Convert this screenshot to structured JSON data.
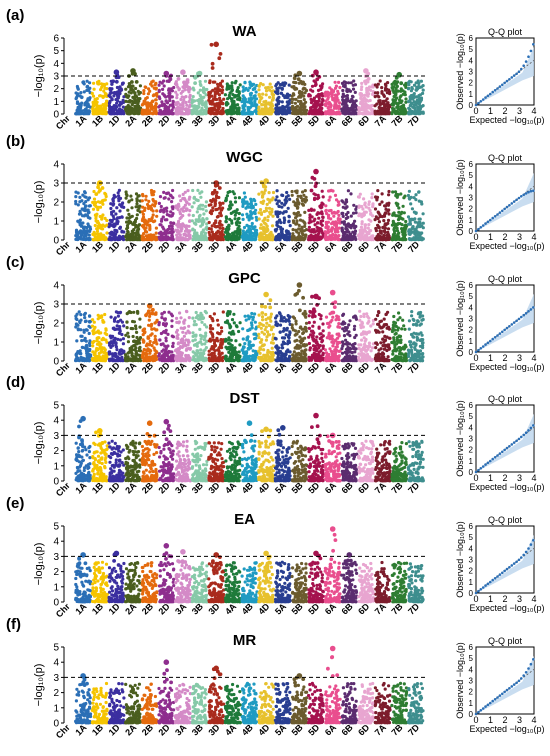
{
  "figure": {
    "chromosomes": [
      "Chr",
      "1A",
      "1B",
      "1D",
      "2A",
      "2B",
      "2D",
      "3A",
      "3B",
      "3D",
      "4A",
      "4B",
      "4D",
      "5A",
      "5B",
      "5D",
      "6A",
      "6B",
      "6D",
      "7A",
      "7B",
      "7D"
    ],
    "chromosome_colors": [
      "#2B6FB6",
      "#F5C400",
      "#3B2FA0",
      "#4A5E1E",
      "#E46A0D",
      "#8E2E8E",
      "#D48AC7",
      "#86C9A8",
      "#A92B1D",
      "#1E7A3A",
      "#1F9BC2",
      "#E7C12D",
      "#283E91",
      "#6B5B2E",
      "#A5124E",
      "#E94E8E",
      "#5B2C6F",
      "#E8A5D0",
      "#7C1C2C",
      "#2E7D32",
      "#3E8E8E"
    ],
    "threshold": 3,
    "ylabel": "−log₁₀(p)",
    "qq": {
      "title": "Q-Q plot",
      "xlabel": "Expected −log₁₀(p)",
      "ylabel": "Observed −log₁₀(p)",
      "xticks": [
        "0",
        "1",
        "2",
        "3",
        "4"
      ],
      "yticks": [
        "0",
        "1",
        "2",
        "3",
        "4",
        "5",
        "6"
      ]
    }
  },
  "chart_data": [
    {
      "panel": "(a)",
      "type": "scatter",
      "title": "WA",
      "ylim": [
        0,
        6
      ],
      "yticks": [
        0,
        1,
        2,
        3,
        4,
        5,
        6
      ],
      "peaks": [
        {
          "chr": "1D",
          "value": 3.3
        },
        {
          "chr": "2A",
          "value": 3.4
        },
        {
          "chr": "2D",
          "value": 3.2
        },
        {
          "chr": "3A",
          "value": 3.3
        },
        {
          "chr": "3B",
          "value": 3.2
        },
        {
          "chr": "3D",
          "value": 5.5
        },
        {
          "chr": "5B",
          "value": 3.2
        },
        {
          "chr": "5D",
          "value": 3.3
        },
        {
          "chr": "6D",
          "value": 3.4
        },
        {
          "chr": "7B",
          "value": 3.1
        }
      ],
      "qq_max_observed": 5.6
    },
    {
      "panel": "(b)",
      "type": "scatter",
      "title": "WGC",
      "ylim": [
        0,
        4
      ],
      "yticks": [
        0,
        1,
        2,
        3,
        4
      ],
      "peaks": [
        {
          "chr": "1B",
          "value": 3.0
        },
        {
          "chr": "3D",
          "value": 3.0
        },
        {
          "chr": "4D",
          "value": 3.1
        },
        {
          "chr": "5D",
          "value": 3.6
        }
      ],
      "qq_max_observed": 3.6
    },
    {
      "panel": "(c)",
      "type": "scatter",
      "title": "GPC",
      "ylim": [
        0,
        4
      ],
      "yticks": [
        0,
        1,
        2,
        3,
        4
      ],
      "peaks": [
        {
          "chr": "2B",
          "value": 2.9
        },
        {
          "chr": "4D",
          "value": 3.5
        },
        {
          "chr": "5B",
          "value": 4.0
        },
        {
          "chr": "5D",
          "value": 3.4
        },
        {
          "chr": "6A",
          "value": 3.6
        }
      ],
      "qq_max_observed": 4.0
    },
    {
      "panel": "(d)",
      "type": "scatter",
      "title": "DST",
      "ylim": [
        0,
        5
      ],
      "yticks": [
        0,
        1,
        2,
        3,
        4,
        5
      ],
      "peaks": [
        {
          "chr": "1A",
          "value": 4.1
        },
        {
          "chr": "1B",
          "value": 3.3
        },
        {
          "chr": "2B",
          "value": 3.8
        },
        {
          "chr": "2D",
          "value": 3.9
        },
        {
          "chr": "4B",
          "value": 3.8
        },
        {
          "chr": "4D",
          "value": 3.4
        },
        {
          "chr": "5A",
          "value": 3.5
        },
        {
          "chr": "5D",
          "value": 4.3
        },
        {
          "chr": "6A",
          "value": 3.0
        }
      ],
      "qq_max_observed": 4.2
    },
    {
      "panel": "(e)",
      "type": "scatter",
      "title": "EA",
      "ylim": [
        0,
        5
      ],
      "yticks": [
        0,
        1,
        2,
        3,
        4,
        5
      ],
      "peaks": [
        {
          "chr": "1A",
          "value": 3.1
        },
        {
          "chr": "1D",
          "value": 3.2
        },
        {
          "chr": "2D",
          "value": 3.7
        },
        {
          "chr": "3A",
          "value": 3.3
        },
        {
          "chr": "3D",
          "value": 3.1
        },
        {
          "chr": "4D",
          "value": 3.2
        },
        {
          "chr": "5D",
          "value": 3.2
        },
        {
          "chr": "6A",
          "value": 4.8
        },
        {
          "chr": "6B",
          "value": 3.1
        }
      ],
      "qq_max_observed": 4.8
    },
    {
      "panel": "(f)",
      "type": "scatter",
      "title": "MR",
      "ylim": [
        0,
        5
      ],
      "yticks": [
        0,
        1,
        2,
        3,
        4,
        5
      ],
      "peaks": [
        {
          "chr": "1A",
          "value": 3.1
        },
        {
          "chr": "2D",
          "value": 4.0
        },
        {
          "chr": "3D",
          "value": 3.6
        },
        {
          "chr": "5B",
          "value": 3.1
        },
        {
          "chr": "6A",
          "value": 4.9
        }
      ],
      "qq_max_observed": 5.0
    }
  ]
}
